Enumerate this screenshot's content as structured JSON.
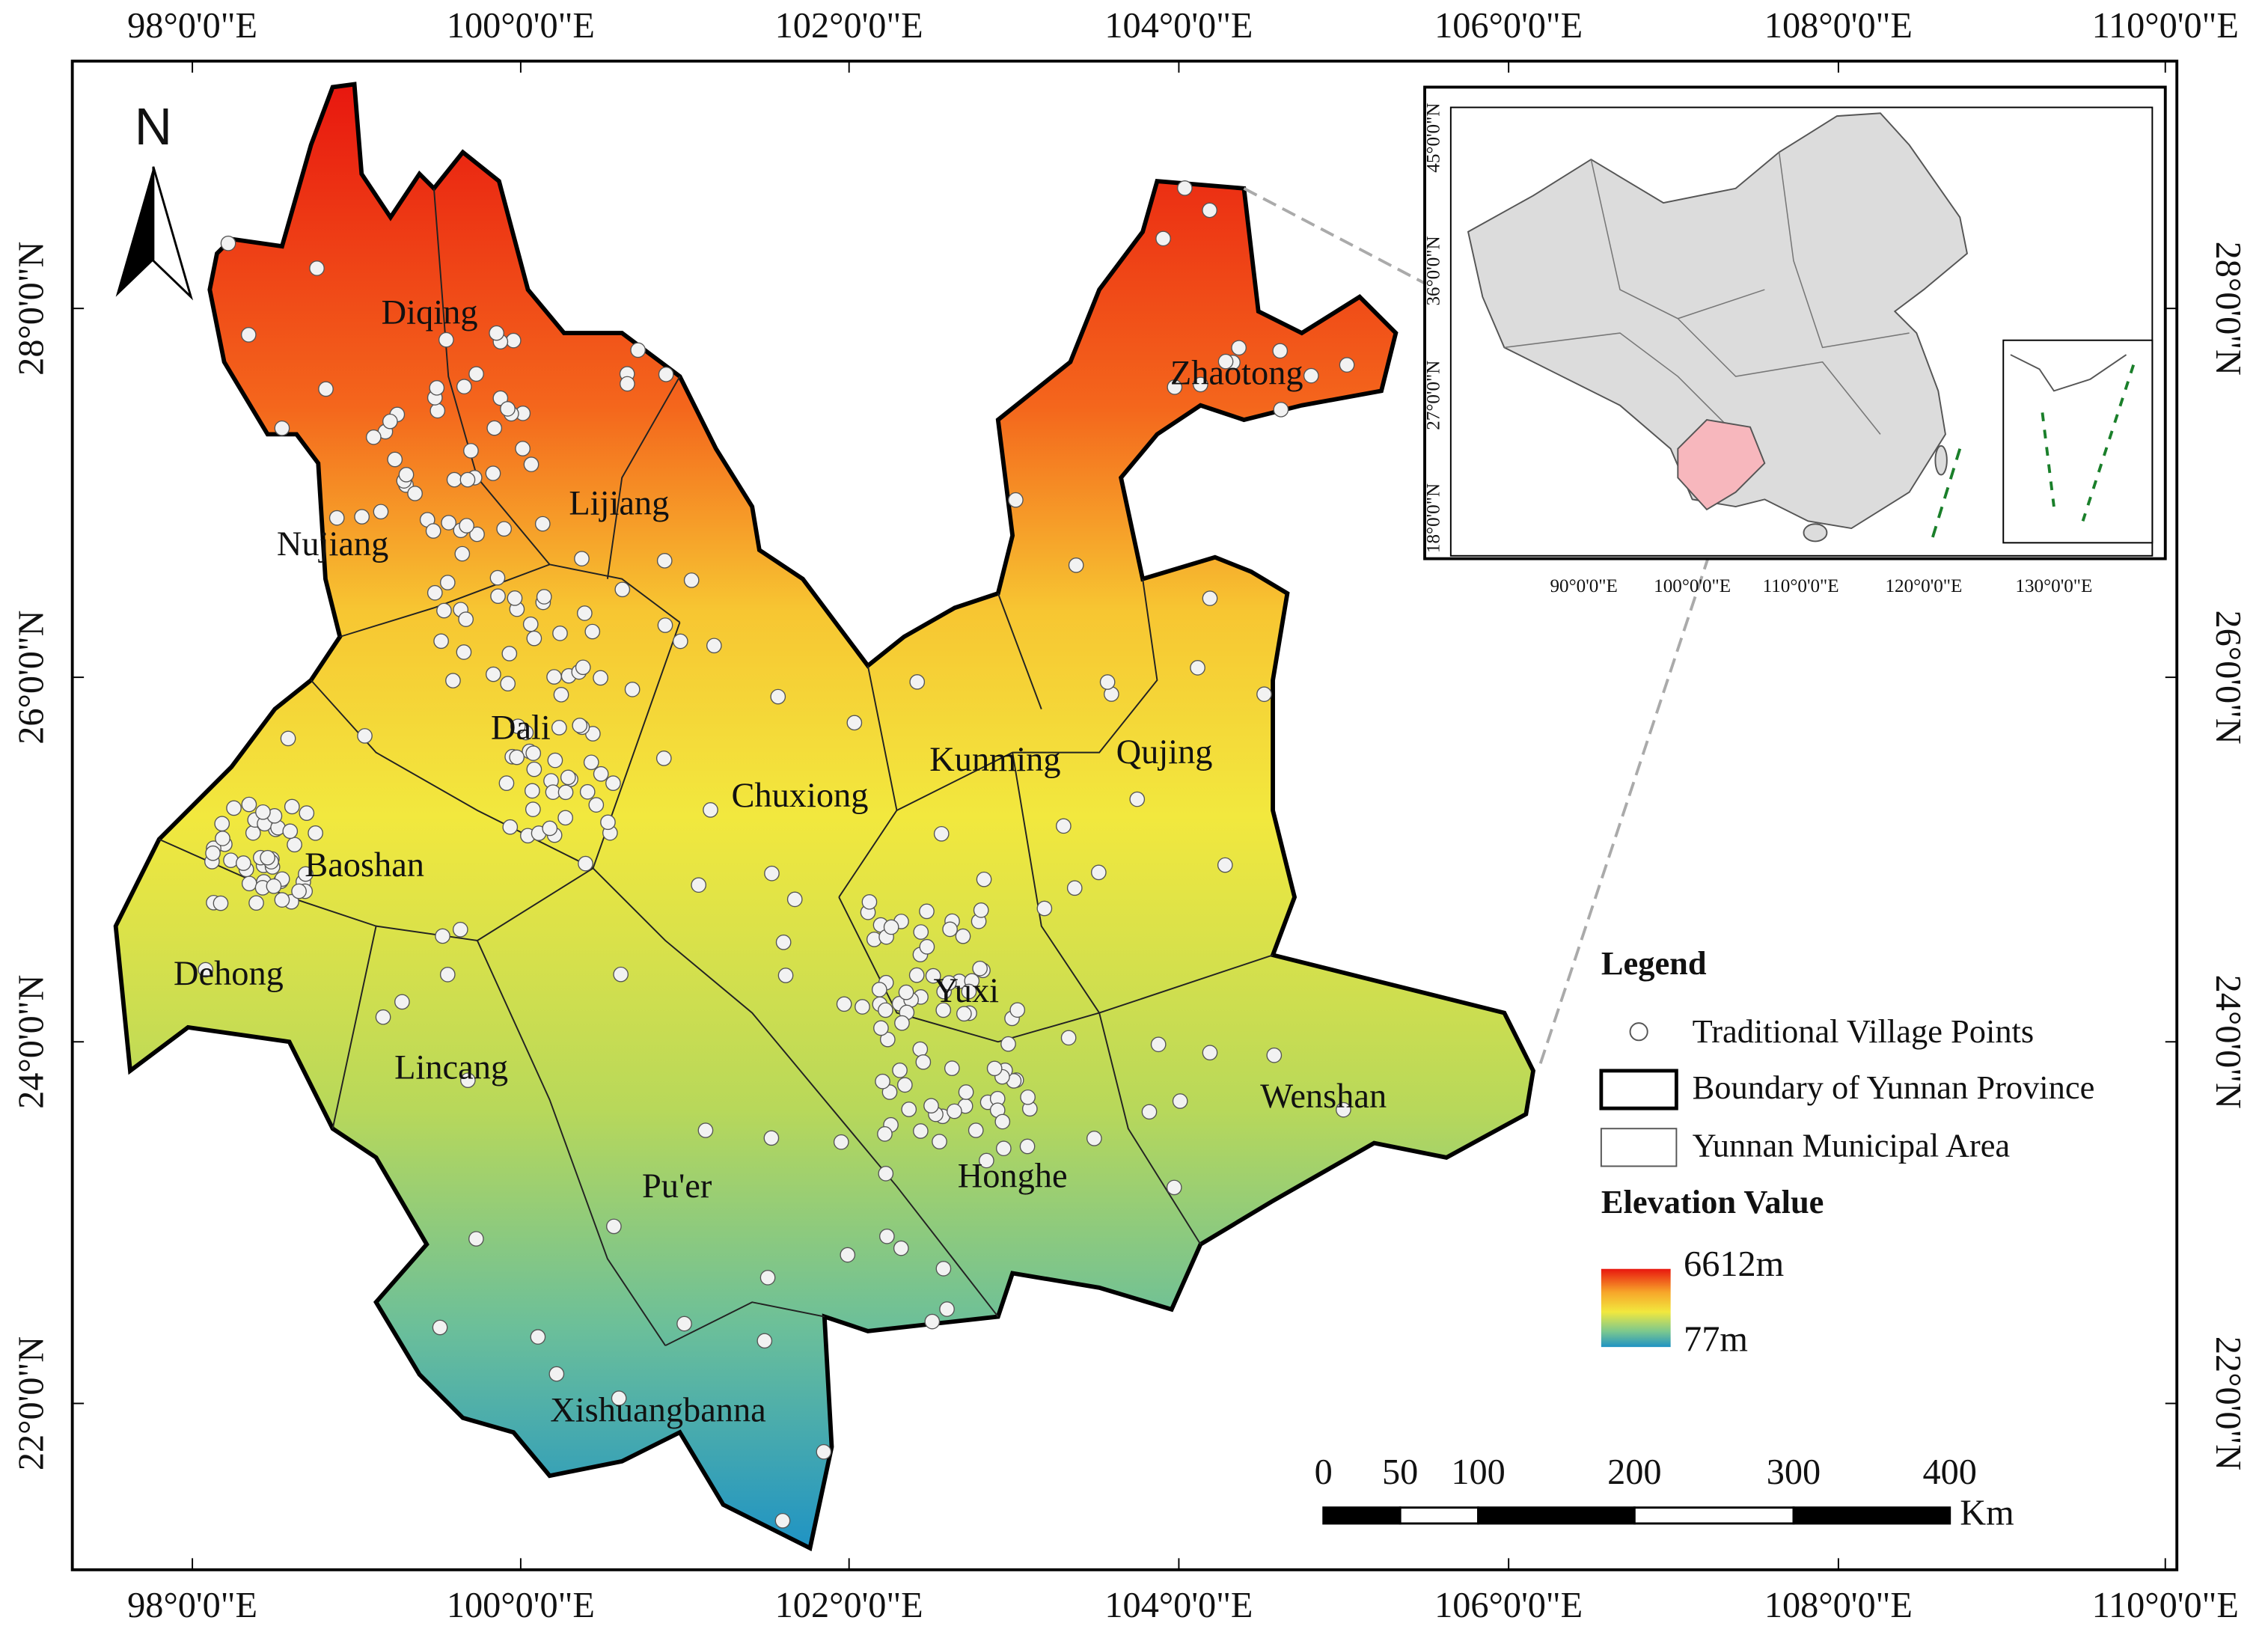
{
  "map": {
    "north_label": "N",
    "graticule": {
      "longitudes": [
        "98°0'0\"E",
        "100°0'0\"E",
        "102°0'0\"E",
        "104°0'0\"E",
        "106°0'0\"E",
        "108°0'0\"E",
        "110°0'0\"E"
      ],
      "latitudes": [
        "28°0'0\"N",
        "26°0'0\"N",
        "24°0'0\"N",
        "22°0'0\"N"
      ]
    },
    "regions": [
      "Diqing",
      "Lijiang",
      "Nujiang",
      "Dali",
      "Baoshan",
      "Dehong",
      "Lincang",
      "Pu'er",
      "Xishuangbanna",
      "Chuxiong",
      "Kunming",
      "Qujing",
      "Zhaotong",
      "Yuxi",
      "Honghe",
      "Wenshan"
    ],
    "inset": {
      "longitudes": [
        "90°0'0\"E",
        "100°0'0\"E",
        "110°0'0\"E",
        "120°0'0\"E",
        "130°0'0\"E"
      ],
      "latitudes": [
        "45°0'0\"N",
        "36°0'0\"N",
        "27°0'0\"N",
        "18°0'0\"N"
      ]
    },
    "legend": {
      "title": "Legend",
      "items": [
        "Traditional Village Points",
        "Boundary of Yunnan Province",
        "Yunnan Municipal Area"
      ],
      "elevation_title": "Elevation Value",
      "elevation_max": "6612m",
      "elevation_min": "77m"
    },
    "scale_bar": {
      "labels": [
        "0",
        "50",
        "100",
        "200",
        "300",
        "400"
      ],
      "unit": "Km"
    }
  }
}
